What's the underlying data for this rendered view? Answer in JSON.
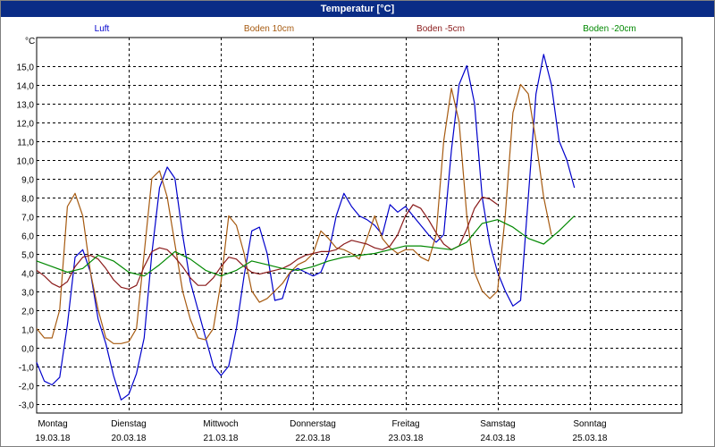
{
  "window": {
    "title": "Temperatur [°C]"
  },
  "chart_data": {
    "type": "line",
    "title": "Temperatur [°C]",
    "ylabel": "°C",
    "ylim": [
      -3.5,
      16.5
    ],
    "xlim": [
      0,
      168
    ],
    "yticks": [
      "-3,0",
      "-2,0",
      "-1,0",
      "0,0",
      "1,0",
      "2,0",
      "3,0",
      "4,0",
      "5,0",
      "6,0",
      "7,0",
      "8,0",
      "9,0",
      "10,0",
      "11,0",
      "12,0",
      "13,0",
      "14,0",
      "15,0"
    ],
    "ytick_values": [
      -3,
      -2,
      -1,
      0,
      1,
      2,
      3,
      4,
      5,
      6,
      7,
      8,
      9,
      10,
      11,
      12,
      13,
      14,
      15
    ],
    "day_ticks": [
      {
        "day": "Montag",
        "date": "19.03.18",
        "hour": 0
      },
      {
        "day": "Dienstag",
        "date": "20.03.18",
        "hour": 24
      },
      {
        "day": "Mittwoch",
        "date": "21.03.18",
        "hour": 48
      },
      {
        "day": "Donnerstag",
        "date": "22.03.18",
        "hour": 72
      },
      {
        "day": "Freitag",
        "date": "23.03.18",
        "hour": 96
      },
      {
        "day": "Samstag",
        "date": "24.03.18",
        "hour": 120
      },
      {
        "day": "Sonntag",
        "date": "25.03.18",
        "hour": 144
      }
    ],
    "grid": true,
    "legend_position": "top",
    "series": [
      {
        "name": "Luft",
        "color": "#0000cc",
        "points": [
          [
            0,
            -0.8
          ],
          [
            2,
            -1.8
          ],
          [
            4,
            -2.0
          ],
          [
            6,
            -1.6
          ],
          [
            8,
            1.2
          ],
          [
            10,
            4.8
          ],
          [
            12,
            5.2
          ],
          [
            14,
            4.0
          ],
          [
            16,
            1.5
          ],
          [
            18,
            0.2
          ],
          [
            20,
            -1.5
          ],
          [
            22,
            -2.8
          ],
          [
            24,
            -2.5
          ],
          [
            26,
            -1.4
          ],
          [
            28,
            0.5
          ],
          [
            30,
            5.0
          ],
          [
            32,
            8.5
          ],
          [
            34,
            9.6
          ],
          [
            36,
            9.0
          ],
          [
            38,
            6.0
          ],
          [
            40,
            3.5
          ],
          [
            42,
            2.0
          ],
          [
            44,
            0.5
          ],
          [
            46,
            -1.0
          ],
          [
            48,
            -1.5
          ],
          [
            50,
            -1.0
          ],
          [
            52,
            1.0
          ],
          [
            54,
            3.8
          ],
          [
            56,
            6.2
          ],
          [
            58,
            6.4
          ],
          [
            60,
            5.0
          ],
          [
            62,
            2.5
          ],
          [
            64,
            2.6
          ],
          [
            66,
            4.0
          ],
          [
            68,
            4.2
          ],
          [
            70,
            4.0
          ],
          [
            72,
            3.8
          ],
          [
            74,
            4.0
          ],
          [
            76,
            5.0
          ],
          [
            78,
            7.0
          ],
          [
            80,
            8.2
          ],
          [
            82,
            7.5
          ],
          [
            84,
            7.0
          ],
          [
            86,
            6.8
          ],
          [
            88,
            6.5
          ],
          [
            90,
            6.0
          ],
          [
            92,
            7.6
          ],
          [
            94,
            7.2
          ],
          [
            96,
            7.5
          ],
          [
            98,
            7.0
          ],
          [
            100,
            6.5
          ],
          [
            102,
            6.0
          ],
          [
            104,
            5.6
          ],
          [
            106,
            6.0
          ],
          [
            108,
            10.5
          ],
          [
            110,
            14.0
          ],
          [
            112,
            15.0
          ],
          [
            114,
            13.0
          ],
          [
            116,
            8.0
          ],
          [
            118,
            5.5
          ],
          [
            120,
            4.0
          ],
          [
            122,
            3.0
          ],
          [
            124,
            2.2
          ],
          [
            126,
            2.5
          ],
          [
            128,
            8.0
          ],
          [
            130,
            13.5
          ],
          [
            132,
            15.6
          ],
          [
            134,
            14.0
          ],
          [
            136,
            11.0
          ],
          [
            138,
            10.0
          ],
          [
            140,
            8.5
          ]
        ]
      },
      {
        "name": "Boden 10cm",
        "color": "#a65a10",
        "points": [
          [
            0,
            1.0
          ],
          [
            2,
            0.5
          ],
          [
            4,
            0.5
          ],
          [
            6,
            2.0
          ],
          [
            8,
            7.5
          ],
          [
            10,
            8.2
          ],
          [
            12,
            7.0
          ],
          [
            14,
            4.0
          ],
          [
            16,
            2.0
          ],
          [
            18,
            0.5
          ],
          [
            20,
            0.2
          ],
          [
            22,
            0.2
          ],
          [
            24,
            0.3
          ],
          [
            26,
            1.0
          ],
          [
            28,
            5.0
          ],
          [
            30,
            9.0
          ],
          [
            32,
            9.4
          ],
          [
            34,
            8.0
          ],
          [
            36,
            5.5
          ],
          [
            38,
            3.0
          ],
          [
            40,
            1.5
          ],
          [
            42,
            0.5
          ],
          [
            44,
            0.4
          ],
          [
            46,
            1.0
          ],
          [
            48,
            3.5
          ],
          [
            50,
            7.0
          ],
          [
            52,
            6.5
          ],
          [
            54,
            5.0
          ],
          [
            56,
            3.0
          ],
          [
            58,
            2.4
          ],
          [
            60,
            2.6
          ],
          [
            62,
            3.0
          ],
          [
            64,
            3.4
          ],
          [
            66,
            4.0
          ],
          [
            68,
            4.4
          ],
          [
            70,
            4.6
          ],
          [
            72,
            5.0
          ],
          [
            74,
            6.2
          ],
          [
            76,
            5.8
          ],
          [
            78,
            5.3
          ],
          [
            80,
            5.2
          ],
          [
            82,
            5.0
          ],
          [
            84,
            4.7
          ],
          [
            86,
            5.8
          ],
          [
            88,
            7.0
          ],
          [
            90,
            5.8
          ],
          [
            92,
            5.3
          ],
          [
            94,
            5.0
          ],
          [
            96,
            5.2
          ],
          [
            98,
            5.2
          ],
          [
            100,
            4.8
          ],
          [
            102,
            4.6
          ],
          [
            104,
            6.0
          ],
          [
            106,
            11.0
          ],
          [
            108,
            13.8
          ],
          [
            110,
            12.0
          ],
          [
            112,
            7.0
          ],
          [
            114,
            4.0
          ],
          [
            116,
            3.0
          ],
          [
            118,
            2.6
          ],
          [
            120,
            3.0
          ],
          [
            122,
            7.0
          ],
          [
            124,
            12.5
          ],
          [
            126,
            14.0
          ],
          [
            128,
            13.5
          ],
          [
            130,
            11.0
          ],
          [
            132,
            8.0
          ],
          [
            134,
            6.0
          ]
        ]
      },
      {
        "name": "Boden -5cm",
        "color": "#8a1a1a",
        "points": [
          [
            0,
            4.1
          ],
          [
            2,
            3.8
          ],
          [
            4,
            3.4
          ],
          [
            6,
            3.2
          ],
          [
            8,
            3.5
          ],
          [
            10,
            4.3
          ],
          [
            12,
            4.8
          ],
          [
            14,
            4.9
          ],
          [
            16,
            4.7
          ],
          [
            18,
            4.2
          ],
          [
            20,
            3.6
          ],
          [
            22,
            3.2
          ],
          [
            24,
            3.1
          ],
          [
            26,
            3.3
          ],
          [
            28,
            4.3
          ],
          [
            30,
            5.1
          ],
          [
            32,
            5.3
          ],
          [
            34,
            5.2
          ],
          [
            36,
            4.8
          ],
          [
            38,
            4.3
          ],
          [
            40,
            3.7
          ],
          [
            42,
            3.3
          ],
          [
            44,
            3.3
          ],
          [
            46,
            3.7
          ],
          [
            48,
            4.3
          ],
          [
            50,
            4.8
          ],
          [
            52,
            4.7
          ],
          [
            54,
            4.3
          ],
          [
            56,
            4.0
          ],
          [
            58,
            3.9
          ],
          [
            60,
            4.0
          ],
          [
            62,
            4.1
          ],
          [
            64,
            4.2
          ],
          [
            66,
            4.4
          ],
          [
            68,
            4.7
          ],
          [
            70,
            4.9
          ],
          [
            72,
            5.0
          ],
          [
            74,
            5.1
          ],
          [
            76,
            5.1
          ],
          [
            78,
            5.2
          ],
          [
            80,
            5.5
          ],
          [
            82,
            5.7
          ],
          [
            84,
            5.6
          ],
          [
            86,
            5.5
          ],
          [
            88,
            5.3
          ],
          [
            90,
            5.2
          ],
          [
            92,
            5.4
          ],
          [
            94,
            6.0
          ],
          [
            96,
            7.0
          ],
          [
            98,
            7.6
          ],
          [
            100,
            7.4
          ],
          [
            102,
            6.8
          ],
          [
            104,
            6.1
          ],
          [
            106,
            5.5
          ],
          [
            108,
            5.2
          ],
          [
            110,
            5.4
          ],
          [
            112,
            6.3
          ],
          [
            114,
            7.4
          ],
          [
            116,
            8.0
          ],
          [
            118,
            7.9
          ],
          [
            120,
            7.6
          ]
        ]
      },
      {
        "name": "Boden -20cm",
        "color": "#008800",
        "points": [
          [
            0,
            4.6
          ],
          [
            4,
            4.3
          ],
          [
            8,
            4.0
          ],
          [
            12,
            4.2
          ],
          [
            16,
            4.9
          ],
          [
            20,
            4.6
          ],
          [
            24,
            4.0
          ],
          [
            28,
            3.8
          ],
          [
            32,
            4.4
          ],
          [
            36,
            5.1
          ],
          [
            40,
            4.7
          ],
          [
            44,
            4.1
          ],
          [
            48,
            3.8
          ],
          [
            52,
            4.1
          ],
          [
            56,
            4.6
          ],
          [
            60,
            4.4
          ],
          [
            64,
            4.2
          ],
          [
            68,
            4.1
          ],
          [
            72,
            4.3
          ],
          [
            76,
            4.6
          ],
          [
            80,
            4.8
          ],
          [
            84,
            4.9
          ],
          [
            88,
            5.0
          ],
          [
            92,
            5.2
          ],
          [
            96,
            5.4
          ],
          [
            100,
            5.4
          ],
          [
            104,
            5.3
          ],
          [
            108,
            5.2
          ],
          [
            112,
            5.6
          ],
          [
            116,
            6.6
          ],
          [
            120,
            6.8
          ],
          [
            124,
            6.4
          ],
          [
            128,
            5.8
          ],
          [
            132,
            5.5
          ],
          [
            136,
            6.2
          ],
          [
            140,
            7.0
          ]
        ]
      }
    ]
  }
}
